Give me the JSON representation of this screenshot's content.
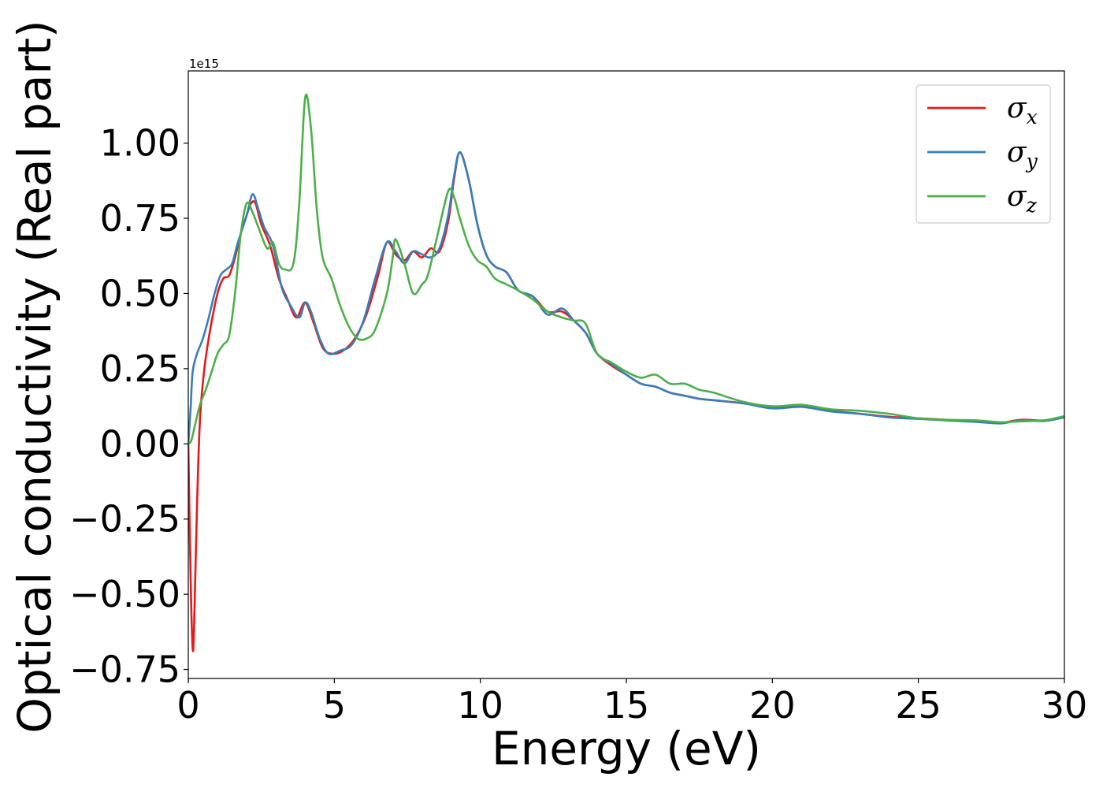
{
  "chart_data": {
    "type": "line",
    "title": "",
    "xlabel": "Energy (eV)",
    "ylabel": "Optical conductivity (Real part)",
    "y_offset_text": "1e15",
    "xlim": [
      0,
      30
    ],
    "ylim": [
      -0.78,
      1.24
    ],
    "x_ticks": [
      0,
      5,
      10,
      15,
      20,
      25,
      30
    ],
    "x_tick_labels": [
      "0",
      "5",
      "10",
      "15",
      "20",
      "25",
      "30"
    ],
    "y_ticks": [
      -0.75,
      -0.5,
      -0.25,
      0.0,
      0.25,
      0.5,
      0.75,
      1.0
    ],
    "y_tick_labels": [
      "−0.75",
      "−0.50",
      "−0.25",
      "0.00",
      "0.25",
      "0.50",
      "0.75",
      "1.00"
    ],
    "grid": false,
    "legend_position": "top-right",
    "series": [
      {
        "name": "σx",
        "symbol": "σ",
        "subscript": "x",
        "color": "#e41a1c",
        "points": [
          [
            0,
            0.0
          ],
          [
            0.08,
            -0.45
          ],
          [
            0.15,
            -0.68
          ],
          [
            0.2,
            -0.6
          ],
          [
            0.3,
            -0.2
          ],
          [
            0.4,
            0.08
          ],
          [
            0.55,
            0.25
          ],
          [
            0.75,
            0.38
          ],
          [
            1.0,
            0.5
          ],
          [
            1.2,
            0.55
          ],
          [
            1.4,
            0.56
          ],
          [
            1.6,
            0.62
          ],
          [
            1.8,
            0.7
          ],
          [
            2.0,
            0.76
          ],
          [
            2.15,
            0.8
          ],
          [
            2.3,
            0.8
          ],
          [
            2.5,
            0.73
          ],
          [
            2.8,
            0.66
          ],
          [
            3.1,
            0.55
          ],
          [
            3.4,
            0.48
          ],
          [
            3.7,
            0.42
          ],
          [
            4.0,
            0.47
          ],
          [
            4.3,
            0.4
          ],
          [
            4.6,
            0.32
          ],
          [
            4.9,
            0.3
          ],
          [
            5.3,
            0.31
          ],
          [
            5.7,
            0.35
          ],
          [
            6.1,
            0.43
          ],
          [
            6.5,
            0.56
          ],
          [
            6.8,
            0.67
          ],
          [
            7.1,
            0.63
          ],
          [
            7.4,
            0.61
          ],
          [
            7.7,
            0.64
          ],
          [
            8.0,
            0.62
          ],
          [
            8.3,
            0.65
          ],
          [
            8.6,
            0.64
          ],
          [
            8.9,
            0.74
          ],
          [
            9.1,
            0.88
          ],
          [
            9.3,
            0.97
          ],
          [
            9.6,
            0.88
          ],
          [
            9.9,
            0.73
          ],
          [
            10.2,
            0.63
          ],
          [
            10.5,
            0.59
          ],
          [
            10.9,
            0.57
          ],
          [
            11.3,
            0.51
          ],
          [
            11.8,
            0.49
          ],
          [
            12.3,
            0.44
          ],
          [
            12.8,
            0.44
          ],
          [
            13.2,
            0.41
          ],
          [
            13.6,
            0.37
          ],
          [
            14.0,
            0.3
          ],
          [
            14.5,
            0.26
          ],
          [
            15.0,
            0.23
          ],
          [
            15.5,
            0.2
          ],
          [
            16.0,
            0.19
          ],
          [
            16.5,
            0.17
          ],
          [
            17.0,
            0.16
          ],
          [
            17.5,
            0.15
          ],
          [
            18.0,
            0.145
          ],
          [
            19.0,
            0.135
          ],
          [
            20.0,
            0.12
          ],
          [
            21.0,
            0.125
          ],
          [
            22.0,
            0.11
          ],
          [
            23.0,
            0.1
          ],
          [
            24.0,
            0.09
          ],
          [
            25.0,
            0.085
          ],
          [
            26.0,
            0.08
          ],
          [
            27.0,
            0.075
          ],
          [
            27.8,
            0.07
          ],
          [
            28.5,
            0.08
          ],
          [
            29.3,
            0.078
          ],
          [
            30.0,
            0.09
          ]
        ]
      },
      {
        "name": "σy",
        "symbol": "σ",
        "subscript": "y",
        "color": "#377eb8",
        "points": [
          [
            0,
            0.0
          ],
          [
            0.08,
            0.12
          ],
          [
            0.15,
            0.24
          ],
          [
            0.3,
            0.3
          ],
          [
            0.5,
            0.35
          ],
          [
            0.7,
            0.42
          ],
          [
            0.9,
            0.5
          ],
          [
            1.1,
            0.56
          ],
          [
            1.3,
            0.58
          ],
          [
            1.5,
            0.6
          ],
          [
            1.7,
            0.67
          ],
          [
            2.0,
            0.76
          ],
          [
            2.2,
            0.83
          ],
          [
            2.4,
            0.78
          ],
          [
            2.6,
            0.72
          ],
          [
            2.9,
            0.66
          ],
          [
            3.2,
            0.52
          ],
          [
            3.5,
            0.46
          ],
          [
            3.8,
            0.42
          ],
          [
            4.0,
            0.47
          ],
          [
            4.2,
            0.44
          ],
          [
            4.5,
            0.35
          ],
          [
            4.8,
            0.3
          ],
          [
            5.2,
            0.31
          ],
          [
            5.6,
            0.33
          ],
          [
            6.0,
            0.41
          ],
          [
            6.4,
            0.55
          ],
          [
            6.8,
            0.67
          ],
          [
            7.1,
            0.64
          ],
          [
            7.4,
            0.6
          ],
          [
            7.7,
            0.64
          ],
          [
            8.0,
            0.63
          ],
          [
            8.3,
            0.62
          ],
          [
            8.6,
            0.65
          ],
          [
            8.9,
            0.76
          ],
          [
            9.1,
            0.89
          ],
          [
            9.3,
            0.97
          ],
          [
            9.6,
            0.88
          ],
          [
            9.9,
            0.73
          ],
          [
            10.2,
            0.63
          ],
          [
            10.5,
            0.59
          ],
          [
            10.9,
            0.57
          ],
          [
            11.3,
            0.51
          ],
          [
            11.8,
            0.49
          ],
          [
            12.3,
            0.43
          ],
          [
            12.8,
            0.45
          ],
          [
            13.2,
            0.41
          ],
          [
            13.6,
            0.37
          ],
          [
            14.0,
            0.3
          ],
          [
            14.5,
            0.265
          ],
          [
            15.0,
            0.23
          ],
          [
            15.5,
            0.2
          ],
          [
            16.0,
            0.19
          ],
          [
            16.5,
            0.17
          ],
          [
            17.0,
            0.16
          ],
          [
            17.5,
            0.15
          ],
          [
            18.0,
            0.145
          ],
          [
            19.0,
            0.135
          ],
          [
            20.0,
            0.118
          ],
          [
            21.0,
            0.123
          ],
          [
            22.0,
            0.108
          ],
          [
            23.0,
            0.1
          ],
          [
            24.0,
            0.088
          ],
          [
            25.0,
            0.083
          ],
          [
            26.0,
            0.078
          ],
          [
            27.0,
            0.073
          ],
          [
            27.8,
            0.068
          ],
          [
            28.5,
            0.078
          ],
          [
            29.3,
            0.076
          ],
          [
            30.0,
            0.088
          ]
        ]
      },
      {
        "name": "σz",
        "symbol": "σ",
        "subscript": "z",
        "color": "#4daf4a",
        "points": [
          [
            0,
            0.0
          ],
          [
            0.1,
            0.01
          ],
          [
            0.2,
            0.05
          ],
          [
            0.4,
            0.13
          ],
          [
            0.6,
            0.18
          ],
          [
            0.8,
            0.24
          ],
          [
            1.0,
            0.3
          ],
          [
            1.2,
            0.33
          ],
          [
            1.4,
            0.36
          ],
          [
            1.6,
            0.5
          ],
          [
            1.8,
            0.7
          ],
          [
            2.0,
            0.8
          ],
          [
            2.2,
            0.77
          ],
          [
            2.4,
            0.72
          ],
          [
            2.7,
            0.65
          ],
          [
            2.9,
            0.67
          ],
          [
            3.1,
            0.6
          ],
          [
            3.3,
            0.58
          ],
          [
            3.6,
            0.6
          ],
          [
            3.8,
            0.8
          ],
          [
            4.0,
            1.15
          ],
          [
            4.2,
            1.05
          ],
          [
            4.4,
            0.78
          ],
          [
            4.6,
            0.62
          ],
          [
            4.9,
            0.55
          ],
          [
            5.2,
            0.46
          ],
          [
            5.5,
            0.39
          ],
          [
            5.8,
            0.35
          ],
          [
            6.1,
            0.35
          ],
          [
            6.4,
            0.38
          ],
          [
            6.8,
            0.5
          ],
          [
            7.0,
            0.62
          ],
          [
            7.1,
            0.68
          ],
          [
            7.4,
            0.6
          ],
          [
            7.7,
            0.5
          ],
          [
            8.0,
            0.53
          ],
          [
            8.2,
            0.56
          ],
          [
            8.5,
            0.68
          ],
          [
            8.9,
            0.84
          ],
          [
            9.1,
            0.82
          ],
          [
            9.3,
            0.75
          ],
          [
            9.6,
            0.66
          ],
          [
            9.9,
            0.61
          ],
          [
            10.2,
            0.59
          ],
          [
            10.5,
            0.55
          ],
          [
            10.9,
            0.53
          ],
          [
            11.3,
            0.51
          ],
          [
            11.8,
            0.48
          ],
          [
            12.3,
            0.44
          ],
          [
            12.8,
            0.42
          ],
          [
            13.2,
            0.41
          ],
          [
            13.6,
            0.4
          ],
          [
            14.0,
            0.3
          ],
          [
            14.5,
            0.27
          ],
          [
            15.0,
            0.24
          ],
          [
            15.5,
            0.22
          ],
          [
            16.0,
            0.23
          ],
          [
            16.5,
            0.2
          ],
          [
            17.0,
            0.2
          ],
          [
            17.5,
            0.18
          ],
          [
            18.0,
            0.17
          ],
          [
            19.0,
            0.14
          ],
          [
            20.0,
            0.125
          ],
          [
            21.0,
            0.13
          ],
          [
            22.0,
            0.115
          ],
          [
            23.0,
            0.11
          ],
          [
            24.0,
            0.1
          ],
          [
            25.0,
            0.085
          ],
          [
            26.0,
            0.08
          ],
          [
            27.0,
            0.078
          ],
          [
            27.8,
            0.072
          ],
          [
            28.5,
            0.075
          ],
          [
            29.3,
            0.078
          ],
          [
            30.0,
            0.092
          ]
        ]
      }
    ]
  }
}
